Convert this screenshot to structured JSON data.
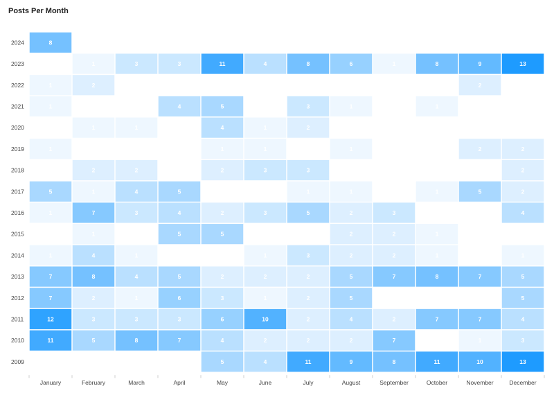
{
  "chart_data": {
    "type": "heatmap",
    "title": "Posts Per Month",
    "xlabel": "",
    "ylabel": "",
    "x": [
      "January",
      "February",
      "March",
      "April",
      "May",
      "June",
      "July",
      "August",
      "September",
      "October",
      "November",
      "December"
    ],
    "y": [
      "2024",
      "2023",
      "2022",
      "2021",
      "2020",
      "2019",
      "2018",
      "2017",
      "2016",
      "2015",
      "2014",
      "2013",
      "2012",
      "2011",
      "2010",
      "2009"
    ],
    "values": [
      [
        8,
        null,
        null,
        null,
        null,
        null,
        null,
        null,
        null,
        null,
        null,
        null
      ],
      [
        null,
        1,
        3,
        3,
        11,
        4,
        8,
        6,
        1,
        8,
        9,
        13
      ],
      [
        1,
        2,
        null,
        null,
        null,
        null,
        null,
        null,
        null,
        null,
        2,
        null
      ],
      [
        1,
        null,
        null,
        4,
        5,
        null,
        3,
        1,
        null,
        1,
        null,
        null
      ],
      [
        null,
        1,
        1,
        null,
        4,
        1,
        2,
        null,
        null,
        null,
        null,
        null
      ],
      [
        1,
        null,
        null,
        null,
        1,
        1,
        null,
        1,
        null,
        null,
        2,
        2
      ],
      [
        null,
        2,
        2,
        null,
        2,
        3,
        3,
        null,
        null,
        null,
        null,
        2
      ],
      [
        5,
        1,
        4,
        5,
        null,
        null,
        1,
        1,
        null,
        1,
        5,
        2
      ],
      [
        1,
        7,
        3,
        4,
        2,
        3,
        5,
        2,
        3,
        null,
        null,
        4
      ],
      [
        null,
        1,
        null,
        5,
        5,
        null,
        null,
        2,
        2,
        1,
        null,
        null
      ],
      [
        1,
        4,
        1,
        null,
        null,
        1,
        3,
        2,
        2,
        1,
        null,
        1
      ],
      [
        7,
        8,
        4,
        5,
        2,
        2,
        2,
        5,
        7,
        8,
        7,
        5
      ],
      [
        7,
        2,
        1,
        6,
        3,
        1,
        2,
        5,
        null,
        null,
        null,
        5
      ],
      [
        12,
        3,
        3,
        3,
        6,
        10,
        2,
        4,
        2,
        7,
        7,
        4
      ],
      [
        11,
        5,
        8,
        7,
        4,
        2,
        2,
        2,
        7,
        null,
        1,
        3
      ],
      [
        null,
        null,
        null,
        null,
        5,
        4,
        11,
        9,
        8,
        11,
        10,
        13
      ]
    ],
    "color_range": [
      1,
      13
    ],
    "colors": {
      "low": "#eef7ff",
      "high": "#1e9bff",
      "label_dark": "#ffffff"
    },
    "grid": false
  }
}
